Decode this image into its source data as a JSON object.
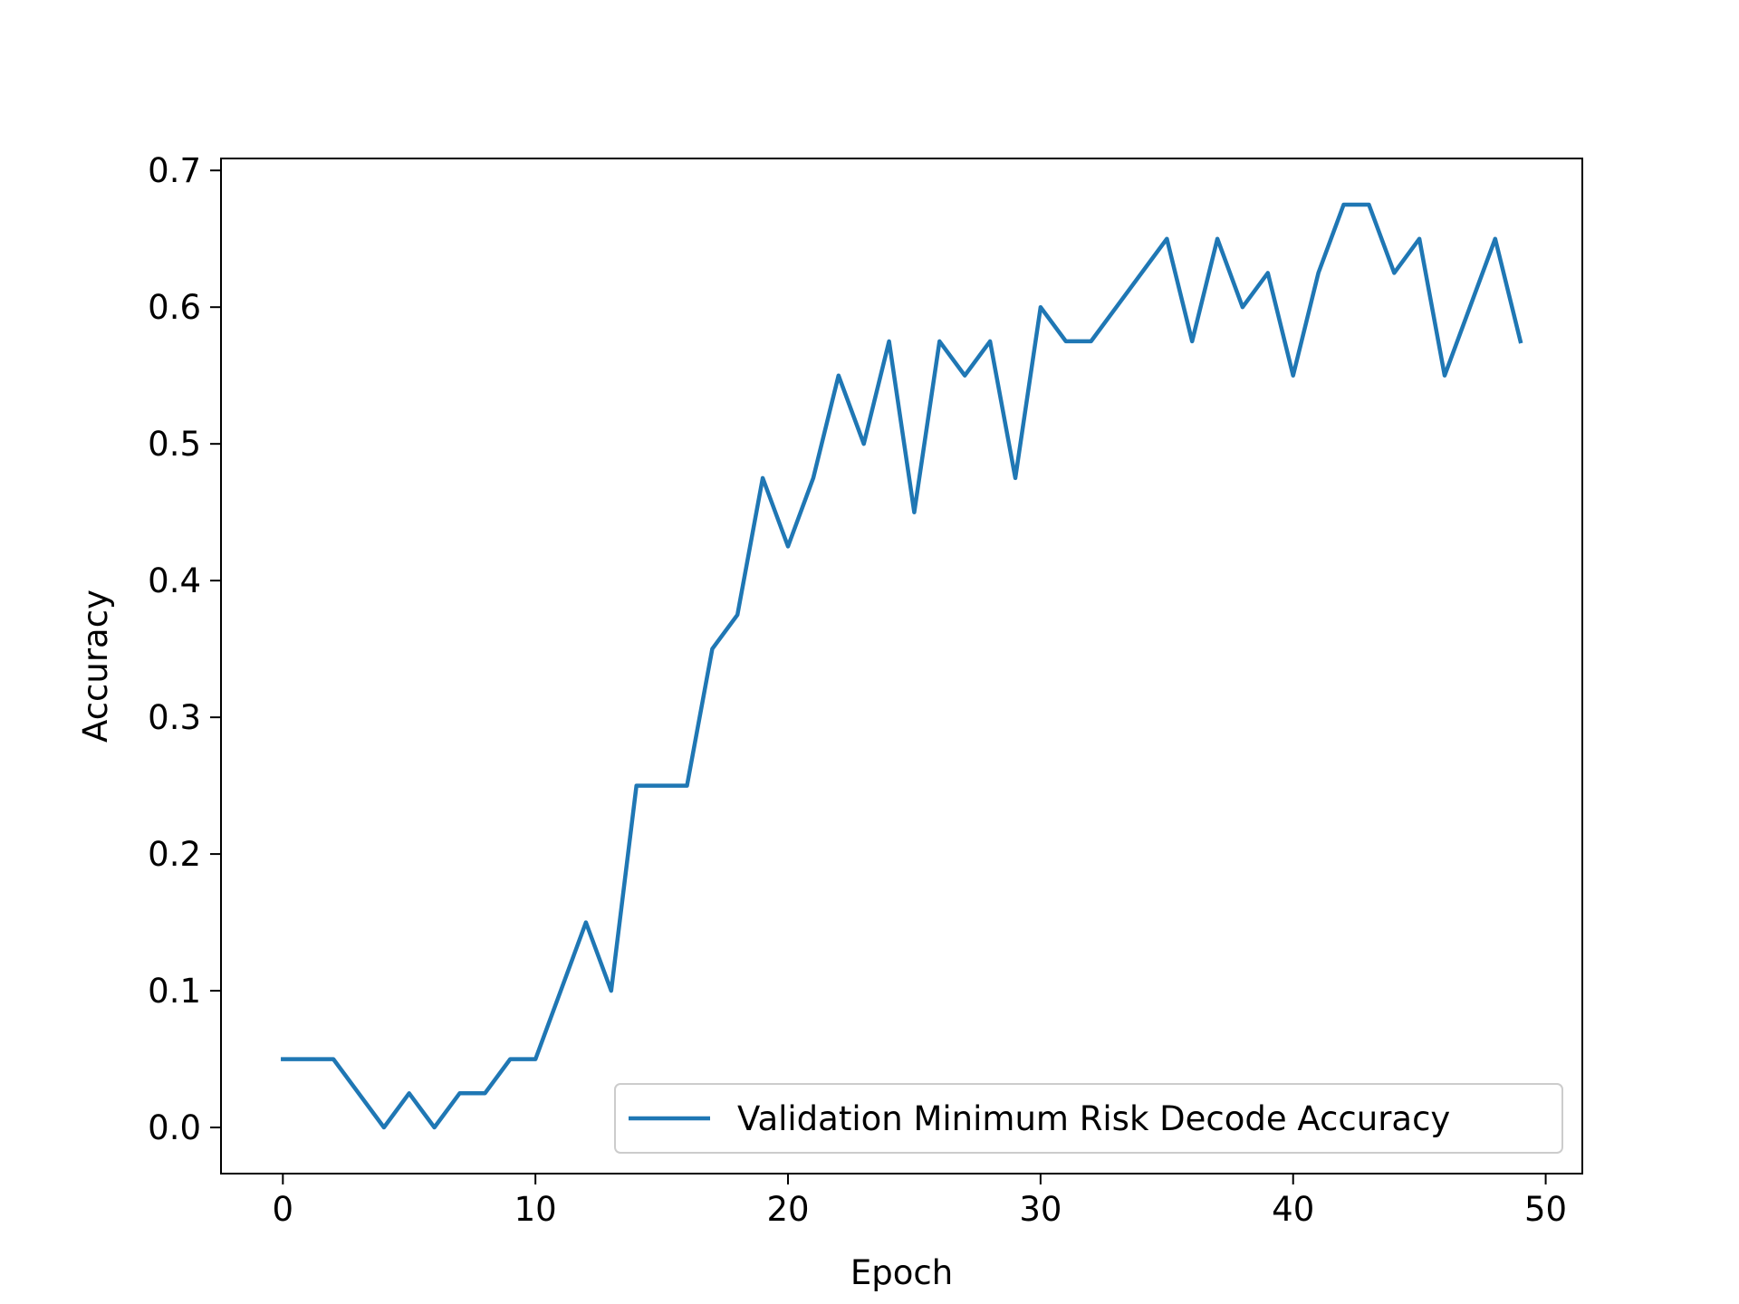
{
  "chart_data": {
    "type": "line",
    "title": "",
    "xlabel": "Epoch",
    "ylabel": "Accuracy",
    "xlim": [
      -2.45,
      51.45
    ],
    "ylim": [
      -0.03375,
      0.70875
    ],
    "xticks": [
      0,
      10,
      20,
      30,
      40,
      50
    ],
    "xtick_labels": [
      "0",
      "10",
      "20",
      "30",
      "40",
      "50"
    ],
    "yticks": [
      0.0,
      0.1,
      0.2,
      0.3,
      0.4,
      0.5,
      0.6,
      0.7
    ],
    "ytick_labels": [
      "0.0",
      "0.1",
      "0.2",
      "0.3",
      "0.4",
      "0.5",
      "0.6",
      "0.7"
    ],
    "grid": false,
    "legend_position": "lower-right",
    "series": [
      {
        "name": "Validation Minimum Risk Decode Accuracy",
        "color": "#1f77b4",
        "x": [
          0,
          1,
          2,
          3,
          4,
          5,
          6,
          7,
          8,
          9,
          10,
          11,
          12,
          13,
          14,
          15,
          16,
          17,
          18,
          19,
          20,
          21,
          22,
          23,
          24,
          25,
          26,
          27,
          28,
          29,
          30,
          31,
          32,
          33,
          34,
          35,
          36,
          37,
          38,
          39,
          40,
          41,
          42,
          43,
          44,
          45,
          46,
          47,
          48,
          49
        ],
        "y": [
          0.05,
          0.05,
          0.05,
          0.025,
          0.0,
          0.025,
          0.0,
          0.025,
          0.025,
          0.05,
          0.05,
          0.1,
          0.15,
          0.1,
          0.25,
          0.25,
          0.25,
          0.35,
          0.375,
          0.475,
          0.425,
          0.475,
          0.55,
          0.5,
          0.575,
          0.45,
          0.575,
          0.55,
          0.575,
          0.475,
          0.6,
          0.575,
          0.575,
          0.6,
          0.625,
          0.65,
          0.575,
          0.65,
          0.6,
          0.625,
          0.55,
          0.625,
          0.675,
          0.675,
          0.625,
          0.65,
          0.55,
          0.6,
          0.65,
          0.575
        ]
      }
    ]
  }
}
